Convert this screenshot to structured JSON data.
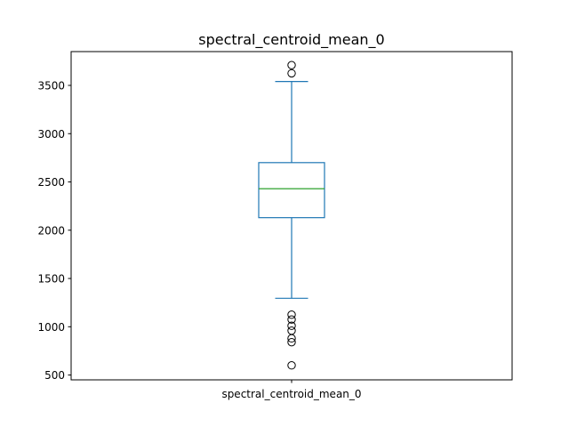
{
  "chart_data": {
    "type": "box",
    "title": "spectral_centroid_mean_0",
    "categories": [
      "spectral_centroid_mean_0"
    ],
    "xlabel": "",
    "ylabel": "",
    "ylim": [
      450,
      3850
    ],
    "yticks": [
      500,
      1000,
      1500,
      2000,
      2500,
      3000,
      3500
    ],
    "grid": false,
    "box": {
      "whisker_low": 1295,
      "q1": 2130,
      "median": 2430,
      "q3": 2700,
      "whisker_high": 3540
    },
    "outliers": [
      3710,
      3625,
      1125,
      1075,
      1010,
      960,
      880,
      840,
      600
    ],
    "colors": {
      "box": "#1f77b4",
      "whisker": "#1f77b4",
      "median": "#2ca02c",
      "outlier": "#000000"
    }
  }
}
